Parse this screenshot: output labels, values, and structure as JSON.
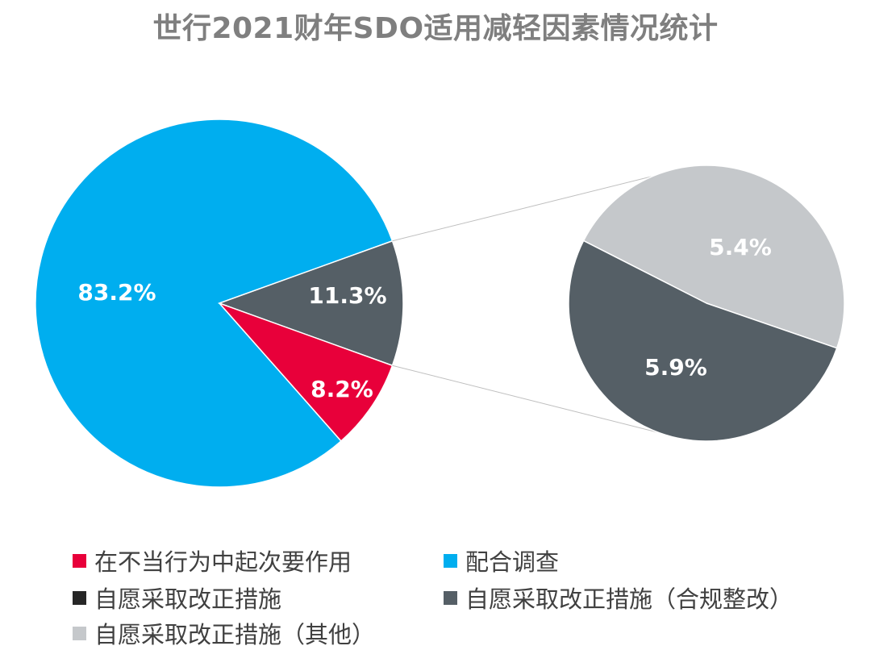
{
  "chart_data": {
    "type": "pie",
    "title": "世行2021财年SDO适用减轻因素情况统计",
    "main_pie": {
      "slices": [
        {
          "name": "配合调查",
          "value": 83.2,
          "label": "83.2%",
          "color": "#00AEEF"
        },
        {
          "name": "自愿采取改正措施",
          "value": 11.3,
          "label": "11.3%",
          "color": "#555F66"
        },
        {
          "name": "在不当行为中起次要作用",
          "value": 8.2,
          "label": "8.2%",
          "color": "#E8003A"
        }
      ]
    },
    "breakdown_pie": {
      "of": "自愿采取改正措施",
      "slices": [
        {
          "name": "自愿采取改正措施（其他）",
          "value": 5.4,
          "label": "5.4%",
          "color": "#C5C8CB"
        },
        {
          "name": "自愿采取改正措施（合规整改）",
          "value": 5.9,
          "label": "5.9%",
          "color": "#555F66"
        }
      ]
    },
    "legend": [
      {
        "label": "在不当行为中起次要作用",
        "color": "#E8003A"
      },
      {
        "label": "配合调查",
        "color": "#00AEEF"
      },
      {
        "label": "自愿采取改正措施",
        "color": "#262626"
      },
      {
        "label": "自愿采取改正措施（合规整改）",
        "color": "#555F66"
      },
      {
        "label": "自愿采取改正措施（其他）",
        "color": "#C5C8CB"
      }
    ],
    "legend_placement": "bottom"
  }
}
